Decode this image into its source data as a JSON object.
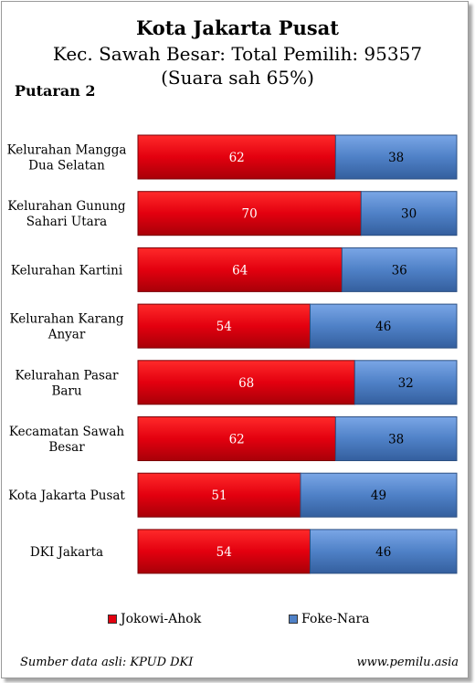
{
  "chart_data": {
    "type": "bar",
    "orientation": "horizontal",
    "stacked": true,
    "title": "Kota Jakarta Pusat",
    "subtitle_line1": "Kec. Sawah Besar: Total Pemilih: 95357",
    "subtitle_line2": "(Suara sah 65%)",
    "round_label": "Putaran 2",
    "categories": [
      [
        "Kelurahan Mangga",
        "Dua Selatan"
      ],
      [
        "Kelurahan Gunung",
        "Sahari Utara"
      ],
      [
        "Kelurahan Kartini"
      ],
      [
        "Kelurahan Karang",
        "Anyar"
      ],
      [
        "Kelurahan Pasar",
        "Baru"
      ],
      [
        "Kecamatan Sawah",
        "Besar"
      ],
      [
        "Kota Jakarta Pusat"
      ],
      [
        "DKI Jakarta"
      ]
    ],
    "series": [
      {
        "name": "Jokowi-Ahok",
        "color": "#e3000f",
        "values": [
          62,
          70,
          64,
          54,
          68,
          62,
          51,
          54
        ]
      },
      {
        "name": "Foke-Nara",
        "color": "#4f81c7",
        "values": [
          38,
          30,
          36,
          46,
          32,
          38,
          49,
          46
        ]
      }
    ],
    "xlim": [
      0,
      100
    ],
    "legend_position": "bottom"
  },
  "footer": {
    "source": "Sumber data asli: KPUD DKI",
    "website": "www.pemilu.asia"
  }
}
